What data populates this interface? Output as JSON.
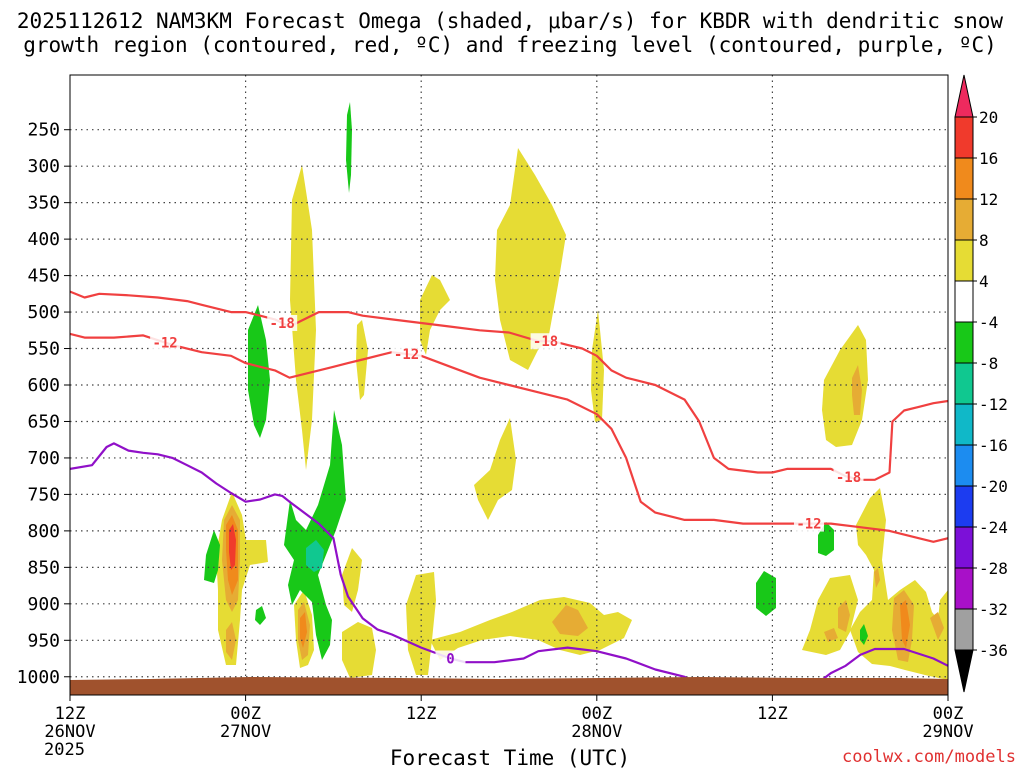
{
  "chart_data": {
    "type": "heatmap",
    "title_line1": "2025112612 NAM3KM Forecast Omega (shaded, μbar/s) for KBDR with dendritic snow",
    "title_line2": "growth region (contoured, red, ºC) and freezing level (contoured, purple, ºC)",
    "xlabel": "Forecast Time (UTC)",
    "ylabel": "",
    "watermark": "coolwx.com/models",
    "x_range_hours": [
      0,
      60
    ],
    "y_range_hpa": [
      175,
      1025
    ],
    "y_ticks": [
      250,
      300,
      350,
      400,
      450,
      500,
      550,
      600,
      650,
      700,
      750,
      800,
      850,
      900,
      950,
      1000
    ],
    "x_ticks": [
      {
        "hour": 0,
        "lines": [
          "12Z",
          "26NOV",
          "2025"
        ]
      },
      {
        "hour": 12,
        "lines": [
          "00Z",
          "27NOV"
        ]
      },
      {
        "hour": 24,
        "lines": [
          "12Z"
        ]
      },
      {
        "hour": 36,
        "lines": [
          "00Z",
          "28NOV"
        ]
      },
      {
        "hour": 48,
        "lines": [
          "12Z"
        ]
      },
      {
        "hour": 60,
        "lines": [
          "00Z",
          "29NOV"
        ]
      }
    ],
    "colorbar": {
      "levels": [
        "20",
        "16",
        "12",
        "8",
        "4",
        "-4",
        "-8",
        "-12",
        "-16",
        "-20",
        "-24",
        "-28",
        "-32",
        "-36"
      ],
      "colors": [
        "#ee2a5e",
        "#f03a2c",
        "#f08a1c",
        "#e6ac34",
        "#e6dc34",
        "#ffffff",
        "#18c818",
        "#10c890",
        "#10b8c8",
        "#1c8cf0",
        "#1c3cf0",
        "#7c10d8",
        "#a810c8",
        "#a0a0a0",
        "#000000"
      ]
    },
    "series": [
      {
        "name": "-18 C isotherm",
        "color": "#f04040",
        "points": [
          [
            0,
            472
          ],
          [
            1,
            480
          ],
          [
            2,
            475
          ],
          [
            4,
            477
          ],
          [
            6,
            480
          ],
          [
            8,
            485
          ],
          [
            9,
            490
          ],
          [
            10,
            495
          ],
          [
            11,
            500
          ],
          [
            12,
            500
          ],
          [
            13,
            505
          ],
          [
            14,
            510
          ],
          [
            15,
            520
          ],
          [
            16,
            510
          ],
          [
            17,
            500
          ],
          [
            18,
            500
          ],
          [
            19,
            500
          ],
          [
            20,
            505
          ],
          [
            22,
            510
          ],
          [
            24,
            515
          ],
          [
            26,
            520
          ],
          [
            28,
            525
          ],
          [
            30,
            528
          ],
          [
            32,
            540
          ],
          [
            33,
            540
          ],
          [
            34,
            545
          ],
          [
            35,
            550
          ],
          [
            36,
            560
          ],
          [
            37,
            580
          ],
          [
            38,
            590
          ],
          [
            40,
            600
          ],
          [
            42,
            620
          ],
          [
            43,
            650
          ],
          [
            44,
            700
          ],
          [
            45,
            715
          ],
          [
            47,
            720
          ],
          [
            48,
            720
          ],
          [
            49,
            715
          ],
          [
            50,
            715
          ],
          [
            52,
            715
          ],
          [
            53,
            725
          ],
          [
            54,
            730
          ],
          [
            55,
            730
          ],
          [
            56,
            720
          ],
          [
            56.2,
            650
          ],
          [
            57,
            635
          ],
          [
            58,
            630
          ],
          [
            59,
            625
          ],
          [
            60,
            622
          ]
        ],
        "labels": [
          {
            "text": "-18",
            "hour": 14.5
          },
          {
            "text": "-18",
            "hour": 32.5
          },
          {
            "text": "-18",
            "hour": 53.2
          }
        ]
      },
      {
        "name": "-12 C isotherm",
        "color": "#f04040",
        "points": [
          [
            0,
            530
          ],
          [
            1,
            535
          ],
          [
            3,
            535
          ],
          [
            5,
            532
          ],
          [
            7,
            545
          ],
          [
            9,
            555
          ],
          [
            11,
            560
          ],
          [
            12,
            570
          ],
          [
            13,
            575
          ],
          [
            14,
            580
          ],
          [
            15,
            590
          ],
          [
            16,
            585
          ],
          [
            17,
            580
          ],
          [
            18,
            575
          ],
          [
            19,
            570
          ],
          [
            20,
            565
          ],
          [
            22,
            555
          ],
          [
            24,
            560
          ],
          [
            26,
            575
          ],
          [
            28,
            590
          ],
          [
            30,
            600
          ],
          [
            32,
            610
          ],
          [
            34,
            620
          ],
          [
            36,
            640
          ],
          [
            37,
            660
          ],
          [
            38,
            700
          ],
          [
            39,
            760
          ],
          [
            40,
            775
          ],
          [
            42,
            785
          ],
          [
            44,
            785
          ],
          [
            46,
            790
          ],
          [
            48,
            790
          ],
          [
            50,
            790
          ],
          [
            52,
            790
          ],
          [
            54,
            795
          ],
          [
            56,
            800
          ],
          [
            58,
            810
          ],
          [
            59,
            815
          ],
          [
            60,
            810
          ]
        ],
        "labels": [
          {
            "text": "-12",
            "hour": 6.5
          },
          {
            "text": "-12",
            "hour": 23.0
          },
          {
            "text": "-12",
            "hour": 50.5
          }
        ]
      },
      {
        "name": "0 C freezing level",
        "color": "#9010c8",
        "points": [
          [
            0,
            715
          ],
          [
            1.5,
            710
          ],
          [
            2.5,
            685
          ],
          [
            3,
            680
          ],
          [
            4,
            690
          ],
          [
            5,
            693
          ],
          [
            6,
            695
          ],
          [
            7,
            700
          ],
          [
            8,
            710
          ],
          [
            9,
            720
          ],
          [
            10,
            735
          ],
          [
            11,
            748
          ],
          [
            12,
            760
          ],
          [
            13,
            757
          ],
          [
            14,
            750
          ],
          [
            14.5,
            752
          ],
          [
            15,
            760
          ],
          [
            16,
            775
          ],
          [
            17,
            790
          ],
          [
            18,
            810
          ],
          [
            18.5,
            860
          ],
          [
            19,
            890
          ],
          [
            20,
            920
          ],
          [
            21,
            935
          ],
          [
            22,
            942
          ],
          [
            24,
            960
          ],
          [
            26,
            975
          ],
          [
            27,
            980
          ],
          [
            29,
            980
          ],
          [
            31,
            975
          ],
          [
            32,
            965
          ],
          [
            34,
            960
          ],
          [
            36,
            965
          ],
          [
            38,
            975
          ],
          [
            40,
            990
          ],
          [
            42,
            1000
          ],
          [
            43,
            1010
          ],
          [
            51,
            1010
          ],
          [
            52,
            995
          ],
          [
            53,
            985
          ],
          [
            54,
            970
          ],
          [
            55,
            962
          ],
          [
            57,
            962
          ],
          [
            59,
            975
          ],
          [
            60,
            985
          ]
        ],
        "labels": [
          {
            "text": "0",
            "hour": 26.0
          }
        ]
      }
    ]
  }
}
